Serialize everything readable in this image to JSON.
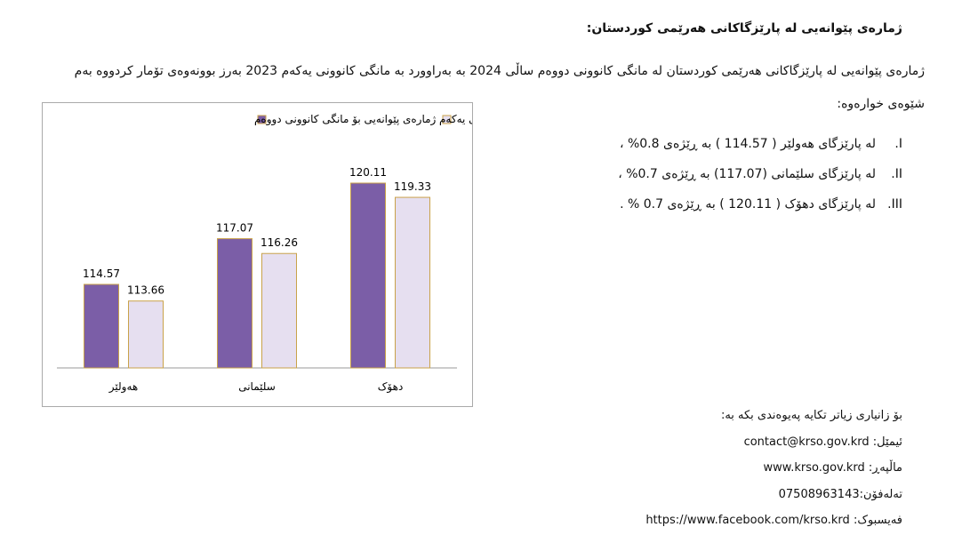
{
  "header": {
    "title": "ژمارەی پێوانەیی لە پارێزگاکانی هەرێمی کوردستان:"
  },
  "intro": "ژمارەی پێوانەیی لە پارێزگاکانی هەرێمی کوردستان لە مانگی کانوونی دووەم ساڵی 2024 بە بەراوورد بە مانگی کانوونی یەکەم 2023 بەرز بوونەوەی تۆمار کردووە بەم شێوەی خوارەوە:",
  "list": [
    {
      "num": "I.",
      "text": "لە پارێزگای هەولێر ( 114.57 ) بە ڕێژەی 0.8% ،"
    },
    {
      "num": "II.",
      "text": "لە پارێزگای سلێمانی (117.07) بە ڕێژەی 0.7% ،"
    },
    {
      "num": "III.",
      "text": "لە پارێزگای دهۆک ( 120.11 ) بە ڕێژەی 0.7 % ."
    }
  ],
  "contact": {
    "intro": "بۆ زانیاری زیاتر تکایە پەیوەندی بکە بە:",
    "email": "ئیمێل: contact@krso.gov.krd",
    "website": "ماڵپەڕ: www.krso.gov.krd",
    "phone": "تەلەفۆن:07508963143",
    "facebook": "فەیسبوک: https://www.facebook.com/krso.krd"
  },
  "chart_data": {
    "type": "bar",
    "categories": [
      "هەولێر",
      "سلێمانی",
      "دهۆک"
    ],
    "series": [
      {
        "name": "ژمارەی پێوانەیی بۆ مانگی کانوونی دووەم",
        "color": "#7b5ea7",
        "values": [
          114.57,
          117.07,
          120.11
        ]
      },
      {
        "name": "ژمارەی پێوانەیی بۆ مانگی کانوونی یەکەم",
        "color": "#e6dff0",
        "values": [
          113.66,
          116.26,
          119.33
        ]
      }
    ],
    "ylim": [
      110,
      124
    ],
    "grid": false
  }
}
